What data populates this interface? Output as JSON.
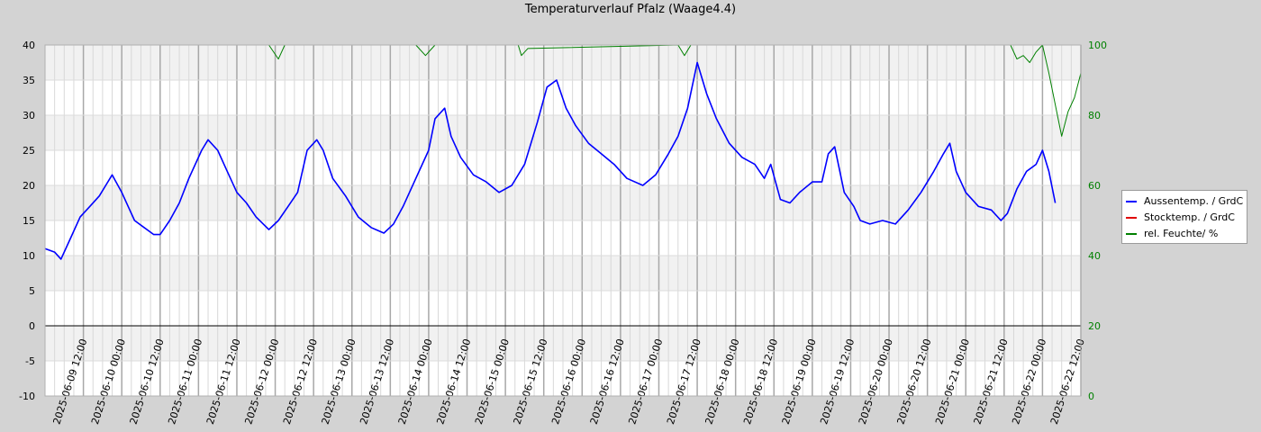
{
  "chart_data": {
    "type": "line",
    "title": "Temperaturverlauf Pfalz (Waage4.4)",
    "x_axis": {
      "type": "datetime",
      "range": [
        "2025-06-09 00:00",
        "2025-06-22 12:00"
      ],
      "tick_labels": [
        "2025-06-09 12:00",
        "2025-06-10 00:00",
        "2025-06-10 12:00",
        "2025-06-11 00:00",
        "2025-06-11 12:00",
        "2025-06-12 00:00",
        "2025-06-12 12:00",
        "2025-06-13 00:00",
        "2025-06-13 12:00",
        "2025-06-14 00:00",
        "2025-06-14 12:00",
        "2025-06-15 00:00",
        "2025-06-15 12:00",
        "2025-06-16 00:00",
        "2025-06-16 12:00",
        "2025-06-17 00:00",
        "2025-06-17 12:00",
        "2025-06-18 00:00",
        "2025-06-18 12:00",
        "2025-06-19 00:00",
        "2025-06-19 12:00",
        "2025-06-20 00:00",
        "2025-06-20 12:00",
        "2025-06-21 00:00",
        "2025-06-21 12:00",
        "2025-06-22 00:00",
        "2025-06-22 12:00"
      ]
    },
    "y_left": {
      "range": [
        -10,
        40
      ],
      "ticks": [
        "-10",
        "-5",
        "0",
        "5",
        "10",
        "15",
        "20",
        "25",
        "30",
        "35",
        "40"
      ]
    },
    "y_right": {
      "range": [
        0,
        100
      ],
      "ticks": [
        "0",
        "20",
        "40",
        "60",
        "80",
        "100"
      ],
      "color": "#008000"
    },
    "grid": true,
    "legend_position": "right",
    "series": [
      {
        "name": "Aussentemp. / GrdC",
        "axis": "left",
        "color": "#0000ff",
        "points": [
          [
            "2025-06-09 00:00",
            11
          ],
          [
            "2025-06-09 03:00",
            10.5
          ],
          [
            "2025-06-09 05:00",
            9.5
          ],
          [
            "2025-06-09 08:00",
            12.5
          ],
          [
            "2025-06-09 11:00",
            15.5
          ],
          [
            "2025-06-09 14:00",
            17
          ],
          [
            "2025-06-09 17:00",
            18.5
          ],
          [
            "2025-06-09 19:00",
            20
          ],
          [
            "2025-06-09 21:00",
            21.5
          ],
          [
            "2025-06-10 00:00",
            19
          ],
          [
            "2025-06-10 02:00",
            17
          ],
          [
            "2025-06-10 04:00",
            15
          ],
          [
            "2025-06-10 07:00",
            14
          ],
          [
            "2025-06-10 10:00",
            13
          ],
          [
            "2025-06-10 12:00",
            13
          ],
          [
            "2025-06-10 15:00",
            15
          ],
          [
            "2025-06-10 18:00",
            17.5
          ],
          [
            "2025-06-10 21:00",
            21
          ],
          [
            "2025-06-11 01:00",
            25
          ],
          [
            "2025-06-11 03:00",
            26.5
          ],
          [
            "2025-06-11 06:00",
            25
          ],
          [
            "2025-06-11 09:00",
            22
          ],
          [
            "2025-06-11 12:00",
            19
          ],
          [
            "2025-06-11 15:00",
            17.5
          ],
          [
            "2025-06-11 18:00",
            15.5
          ],
          [
            "2025-06-11 22:00",
            13.7
          ],
          [
            "2025-06-12 01:00",
            15
          ],
          [
            "2025-06-12 04:00",
            17
          ],
          [
            "2025-06-12 07:00",
            19
          ],
          [
            "2025-06-12 10:00",
            25
          ],
          [
            "2025-06-12 13:00",
            26.5
          ],
          [
            "2025-06-12 15:00",
            25
          ],
          [
            "2025-06-12 18:00",
            21
          ],
          [
            "2025-06-12 22:00",
            18.5
          ],
          [
            "2025-06-13 02:00",
            15.5
          ],
          [
            "2025-06-13 06:00",
            14
          ],
          [
            "2025-06-13 10:00",
            13.2
          ],
          [
            "2025-06-13 13:00",
            14.5
          ],
          [
            "2025-06-13 16:00",
            17
          ],
          [
            "2025-06-13 20:00",
            21
          ],
          [
            "2025-06-14 00:00",
            25
          ],
          [
            "2025-06-14 02:00",
            29.5
          ],
          [
            "2025-06-14 05:00",
            31
          ],
          [
            "2025-06-14 07:00",
            27
          ],
          [
            "2025-06-14 10:00",
            24
          ],
          [
            "2025-06-14 14:00",
            21.5
          ],
          [
            "2025-06-14 18:00",
            20.5
          ],
          [
            "2025-06-14 22:00",
            19
          ],
          [
            "2025-06-15 02:00",
            20
          ],
          [
            "2025-06-15 06:00",
            23
          ],
          [
            "2025-06-15 10:00",
            29
          ],
          [
            "2025-06-15 13:00",
            34
          ],
          [
            "2025-06-15 16:00",
            35
          ],
          [
            "2025-06-15 19:00",
            31
          ],
          [
            "2025-06-15 22:00",
            28.5
          ],
          [
            "2025-06-16 02:00",
            26
          ],
          [
            "2025-06-16 06:00",
            24.5
          ],
          [
            "2025-06-16 10:00",
            23
          ],
          [
            "2025-06-16 14:00",
            21
          ],
          [
            "2025-06-16 19:00",
            20
          ],
          [
            "2025-06-16 23:00",
            21.5
          ],
          [
            "2025-06-17 03:00",
            24.5
          ],
          [
            "2025-06-17 06:00",
            27
          ],
          [
            "2025-06-17 09:00",
            31
          ],
          [
            "2025-06-17 12:00",
            37.5
          ],
          [
            "2025-06-17 15:00",
            33
          ],
          [
            "2025-06-17 18:00",
            29.5
          ],
          [
            "2025-06-17 22:00",
            26
          ],
          [
            "2025-06-18 02:00",
            24
          ],
          [
            "2025-06-18 06:00",
            23
          ],
          [
            "2025-06-18 09:00",
            21
          ],
          [
            "2025-06-18 11:00",
            23
          ],
          [
            "2025-06-18 14:00",
            18
          ],
          [
            "2025-06-18 17:00",
            17.5
          ],
          [
            "2025-06-18 20:00",
            19
          ],
          [
            "2025-06-19 00:00",
            20.5
          ],
          [
            "2025-06-19 03:00",
            20.5
          ],
          [
            "2025-06-19 05:00",
            24.5
          ],
          [
            "2025-06-19 07:00",
            25.5
          ],
          [
            "2025-06-19 10:00",
            19
          ],
          [
            "2025-06-19 13:00",
            17
          ],
          [
            "2025-06-19 15:00",
            15
          ],
          [
            "2025-06-19 18:00",
            14.5
          ],
          [
            "2025-06-19 22:00",
            15
          ],
          [
            "2025-06-20 02:00",
            14.5
          ],
          [
            "2025-06-20 06:00",
            16.5
          ],
          [
            "2025-06-20 10:00",
            19
          ],
          [
            "2025-06-20 14:00",
            22
          ],
          [
            "2025-06-20 17:00",
            24.5
          ],
          [
            "2025-06-20 19:00",
            26
          ],
          [
            "2025-06-20 21:00",
            22
          ],
          [
            "2025-06-21 00:00",
            19
          ],
          [
            "2025-06-21 04:00",
            17
          ],
          [
            "2025-06-21 08:00",
            16.5
          ],
          [
            "2025-06-21 11:00",
            15
          ],
          [
            "2025-06-21 13:00",
            16
          ],
          [
            "2025-06-21 16:00",
            19.5
          ],
          [
            "2025-06-21 19:00",
            22
          ],
          [
            "2025-06-21 22:00",
            23
          ],
          [
            "2025-06-22 00:00",
            25
          ],
          [
            "2025-06-22 02:00",
            22
          ],
          [
            "2025-06-22 04:00",
            17.5
          ]
        ]
      },
      {
        "name": "Stocktemp.  / GrdC",
        "axis": "left",
        "color": "#e00000",
        "points": []
      },
      {
        "name": "rel. Feuchte/ %",
        "axis": "right",
        "color": "#008000",
        "points": [
          [
            "2025-06-09 00:00",
            100
          ],
          [
            "2025-06-11 22:00",
            100
          ],
          [
            "2025-06-12 01:00",
            96
          ],
          [
            "2025-06-12 03:00",
            100
          ],
          [
            "2025-06-13 20:00",
            100
          ],
          [
            "2025-06-13 23:00",
            97
          ],
          [
            "2025-06-14 02:00",
            100
          ],
          [
            "2025-06-15 04:00",
            100
          ],
          [
            "2025-06-15 05:00",
            97
          ],
          [
            "2025-06-15 07:00",
            99
          ],
          [
            "2025-06-17 06:00",
            100
          ],
          [
            "2025-06-17 08:00",
            97
          ],
          [
            "2025-06-17 10:00",
            100
          ],
          [
            "2025-06-21 14:00",
            100
          ],
          [
            "2025-06-21 16:00",
            96
          ],
          [
            "2025-06-21 18:00",
            97
          ],
          [
            "2025-06-21 20:00",
            95
          ],
          [
            "2025-06-21 22:00",
            98
          ],
          [
            "2025-06-22 00:00",
            100
          ],
          [
            "2025-06-22 02:00",
            92
          ],
          [
            "2025-06-22 04:00",
            83
          ],
          [
            "2025-06-22 06:00",
            74
          ],
          [
            "2025-06-22 08:00",
            81
          ],
          [
            "2025-06-22 10:00",
            85
          ],
          [
            "2025-06-22 12:00",
            92
          ]
        ]
      }
    ]
  }
}
